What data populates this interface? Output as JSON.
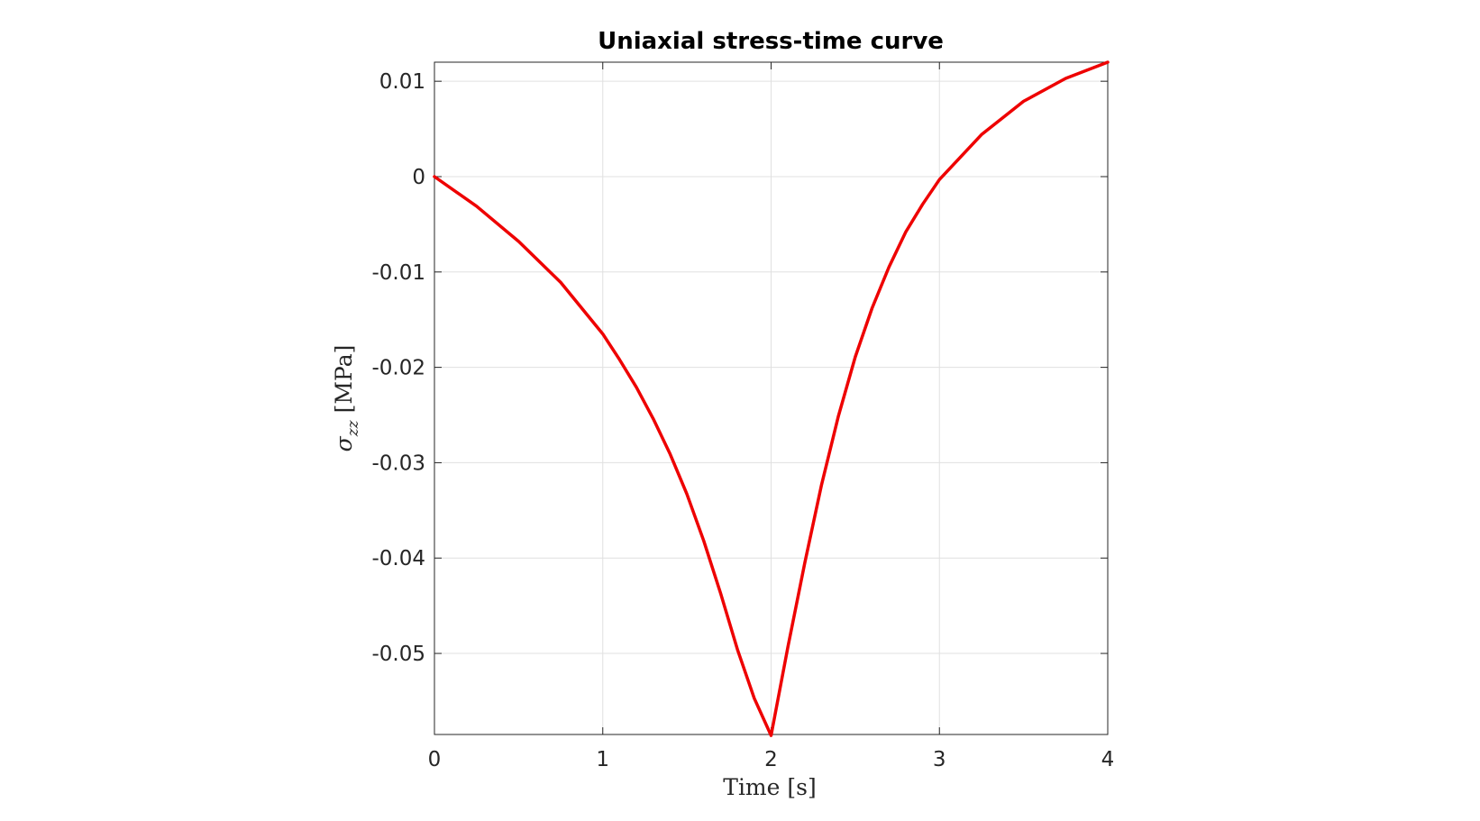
{
  "chart_data": {
    "type": "line",
    "title": "Uniaxial stress-time curve",
    "xlabel": "Time [s]",
    "ylabel_symbol": "σ",
    "ylabel_subscript": "zz",
    "ylabel_unit": "[MPa]",
    "xlim": [
      0,
      4
    ],
    "ylim": [
      -0.0585,
      0.012
    ],
    "xticks": [
      0,
      1,
      2,
      3,
      4
    ],
    "xtick_labels": [
      "0",
      "1",
      "2",
      "3",
      "4"
    ],
    "yticks": [
      0.01,
      0,
      -0.01,
      -0.02,
      -0.03,
      -0.04,
      -0.05
    ],
    "ytick_labels": [
      "0.01",
      "0",
      "-0.01",
      "-0.02",
      "-0.03",
      "-0.04",
      "-0.05"
    ],
    "grid": true,
    "colors": {
      "line": "#ee0000"
    },
    "series": [
      {
        "x": [
          0,
          0.25,
          0.5,
          0.75,
          1.0,
          1.1,
          1.2,
          1.3,
          1.4,
          1.5,
          1.6,
          1.7,
          1.8,
          1.9,
          2.0,
          2.1,
          2.2,
          2.3,
          2.4,
          2.5,
          2.6,
          2.7,
          2.8,
          2.9,
          3.0,
          3.25,
          3.5,
          3.75,
          4.0
        ],
        "y": [
          0,
          -0.0031,
          -0.0068,
          -0.0111,
          -0.0165,
          -0.0192,
          -0.0221,
          -0.0254,
          -0.0291,
          -0.0333,
          -0.0382,
          -0.0437,
          -0.0496,
          -0.0547,
          -0.0586,
          -0.0493,
          -0.0405,
          -0.0323,
          -0.0251,
          -0.0189,
          -0.0138,
          -0.0095,
          -0.0058,
          -0.0029,
          -0.0003,
          0.0044,
          0.0079,
          0.0103,
          0.012
        ]
      }
    ]
  }
}
